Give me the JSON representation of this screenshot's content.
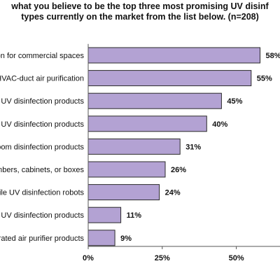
{
  "chart_data": {
    "type": "bar",
    "orientation": "horizontal",
    "title_lines": [
      "what you believe to be the top three most promising UV disinf",
      "types currently on the market from the list below. (n=208)"
    ],
    "categories": [
      "on for commercial spaces",
      "HVAC-duct air purification",
      "UV disinfection products",
      "UV disinfection products",
      "oom disinfection products",
      "mbers, cabinets, or boxes",
      "ile UV disinfection robots",
      "UV disinfection products",
      "rated air purifier products"
    ],
    "values": [
      58,
      55,
      45,
      40,
      31,
      26,
      24,
      11,
      9
    ],
    "value_suffix": "%",
    "xlim": [
      0,
      75
    ],
    "x_ticks": [
      0,
      25,
      50
    ],
    "x_tick_labels": [
      "0%",
      "25%",
      "50%"
    ],
    "grid": false,
    "bar_color": "#b3a2d3",
    "bar_edge_color": "#2b2b2b"
  }
}
